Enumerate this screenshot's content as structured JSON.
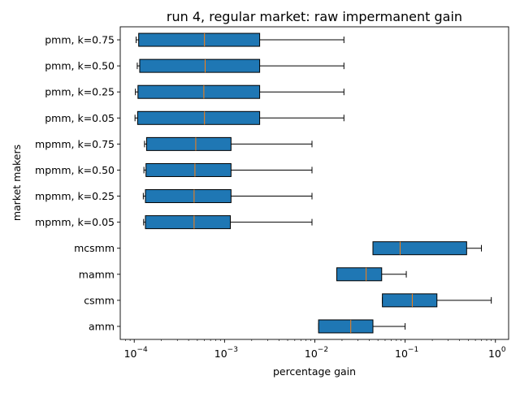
{
  "chart_data": {
    "type": "boxplot",
    "orientation": "horizontal",
    "title": "run 4, regular market: raw impermanent gain",
    "xlabel": "percentage gain",
    "ylabel": "market makers",
    "xscale": "log",
    "xlim": [
      7e-05,
      1.4
    ],
    "x_ticks": [
      {
        "base": "10",
        "exp": "−4",
        "value": 0.0001
      },
      {
        "base": "10",
        "exp": "−3",
        "value": 0.001
      },
      {
        "base": "10",
        "exp": "−2",
        "value": 0.01
      },
      {
        "base": "10",
        "exp": "−1",
        "value": 0.1
      },
      {
        "base": "10",
        "exp": "0",
        "value": 1
      }
    ],
    "grid": false,
    "legend": "none",
    "colors": {
      "box_fill": "#1f77b4",
      "median": "#ff7f0e",
      "edge": "#000000"
    },
    "categories": [
      "pmm, k=0.75",
      "pmm, k=0.50",
      "pmm, k=0.25",
      "pmm, k=0.05",
      "mpmm, k=0.75",
      "mpmm, k=0.50",
      "mpmm, k=0.25",
      "mpmm, k=0.05",
      "mcsmm",
      "mamm",
      "csmm",
      "amm"
    ],
    "boxes": [
      {
        "label": "pmm, k=0.75",
        "whislo": 0.000105,
        "q1": 0.000112,
        "median": 0.0006,
        "q3": 0.00245,
        "whishi": 0.021
      },
      {
        "label": "pmm, k=0.50",
        "whislo": 0.000108,
        "q1": 0.000115,
        "median": 0.00061,
        "q3": 0.00245,
        "whishi": 0.021
      },
      {
        "label": "pmm, k=0.25",
        "whislo": 0.000103,
        "q1": 0.00011,
        "median": 0.00059,
        "q3": 0.00245,
        "whishi": 0.021
      },
      {
        "label": "pmm, k=0.05",
        "whislo": 0.000102,
        "q1": 0.000109,
        "median": 0.0006,
        "q3": 0.00245,
        "whishi": 0.021
      },
      {
        "label": "mpmm, k=0.75",
        "whislo": 0.00013,
        "q1": 0.000137,
        "median": 0.00048,
        "q3": 0.00118,
        "whishi": 0.0093
      },
      {
        "label": "mpmm, k=0.50",
        "whislo": 0.000128,
        "q1": 0.000135,
        "median": 0.00047,
        "q3": 0.00118,
        "whishi": 0.0093
      },
      {
        "label": "mpmm, k=0.25",
        "whislo": 0.000126,
        "q1": 0.000133,
        "median": 0.00046,
        "q3": 0.00118,
        "whishi": 0.0093
      },
      {
        "label": "mpmm, k=0.05",
        "whislo": 0.000127,
        "q1": 0.000133,
        "median": 0.00046,
        "q3": 0.00116,
        "whishi": 0.0093
      },
      {
        "label": "mcsmm",
        "whislo": 0.044,
        "q1": 0.044,
        "median": 0.088,
        "q3": 0.48,
        "whishi": 0.7
      },
      {
        "label": "mamm",
        "whislo": 0.0175,
        "q1": 0.0175,
        "median": 0.037,
        "q3": 0.055,
        "whishi": 0.103
      },
      {
        "label": "csmm",
        "whislo": 0.056,
        "q1": 0.056,
        "median": 0.12,
        "q3": 0.225,
        "whishi": 0.9
      },
      {
        "label": "amm",
        "whislo": 0.011,
        "q1": 0.011,
        "median": 0.025,
        "q3": 0.044,
        "whishi": 0.1
      }
    ]
  }
}
